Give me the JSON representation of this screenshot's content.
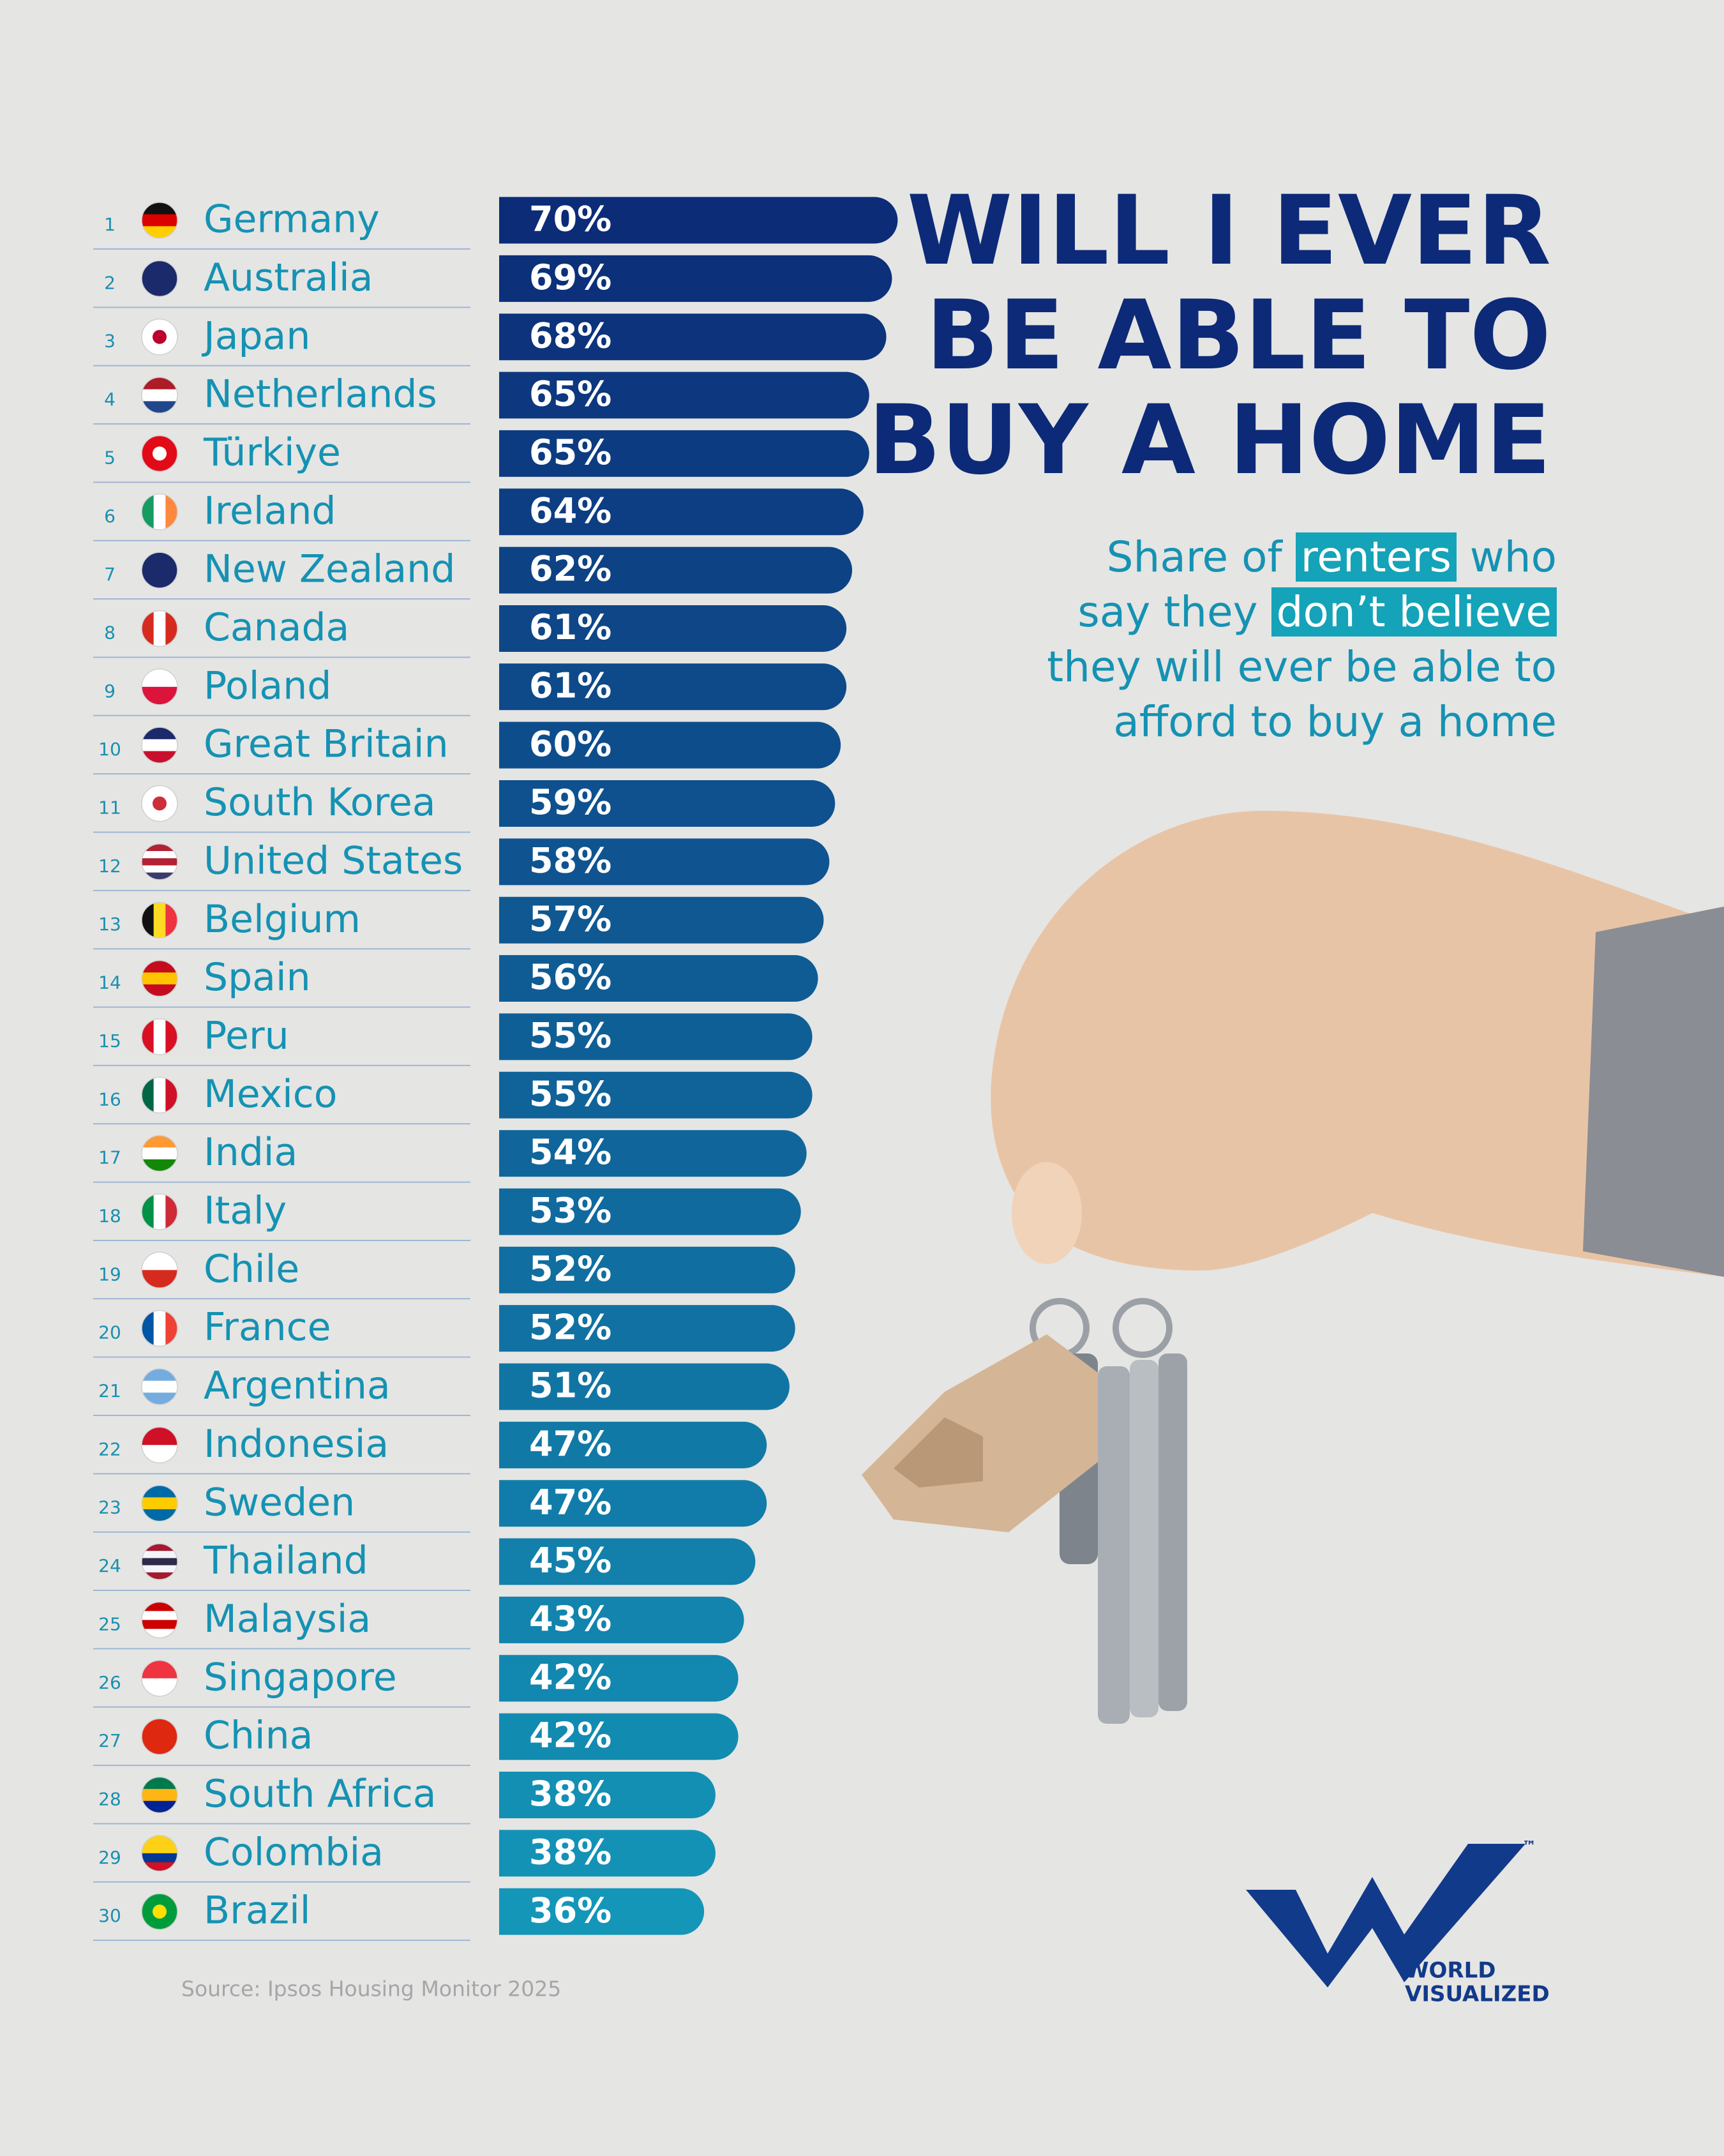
{
  "chart_data": {
    "type": "bar",
    "title": [
      "WILL I EVER",
      "BE ABLE TO",
      "BUY A HOME"
    ],
    "subtitle": [
      [
        {
          "text": "Share of ",
          "highlight": false
        },
        {
          "text": "renters",
          "highlight": true
        },
        {
          "text": " who",
          "highlight": false
        }
      ],
      [
        {
          "text": "say they ",
          "highlight": false
        },
        {
          "text": "don’t believe",
          "highlight": true
        }
      ],
      [
        {
          "text": "they will ever be able to",
          "highlight": false
        }
      ],
      [
        {
          "text": "afford to buy a home",
          "highlight": false
        }
      ]
    ],
    "ranks": [
      1,
      2,
      3,
      4,
      5,
      6,
      7,
      8,
      9,
      10,
      11,
      12,
      13,
      14,
      15,
      16,
      17,
      18,
      19,
      20,
      21,
      22,
      23,
      24,
      25,
      26,
      27,
      28,
      29,
      30
    ],
    "categories": [
      "Germany",
      "Australia",
      "Japan",
      "Netherlands",
      "Türkiye",
      "Ireland",
      "New Zealand",
      "Canada",
      "Poland",
      "Great Britain",
      "South Korea",
      "United States",
      "Belgium",
      "Spain",
      "Peru",
      "Mexico",
      "India",
      "Italy",
      "Chile",
      "France",
      "Argentina",
      "Indonesia",
      "Sweden",
      "Thailand",
      "Malaysia",
      "Singapore",
      "China",
      "South Africa",
      "Colombia",
      "Brazil"
    ],
    "values": [
      70,
      69,
      68,
      65,
      65,
      64,
      62,
      61,
      61,
      60,
      59,
      58,
      57,
      56,
      55,
      55,
      54,
      53,
      52,
      52,
      51,
      47,
      47,
      45,
      43,
      42,
      42,
      38,
      38,
      36
    ],
    "value_labels": [
      "70%",
      "69%",
      "68%",
      "65%",
      "65%",
      "64%",
      "62%",
      "61%",
      "61%",
      "60%",
      "59%",
      "58%",
      "57%",
      "56%",
      "55%",
      "55%",
      "54%",
      "53%",
      "52%",
      "52%",
      "51%",
      "47%",
      "47%",
      "45%",
      "43%",
      "42%",
      "42%",
      "38%",
      "38%",
      "36%"
    ],
    "color_scale": [
      "#0c2c78",
      "#1396b8"
    ],
    "source": "Source: Ipsos Housing Monitor 2025",
    "logo": {
      "line1": "WORLD",
      "line2": "VISUALIZED",
      "mark": "™"
    }
  }
}
